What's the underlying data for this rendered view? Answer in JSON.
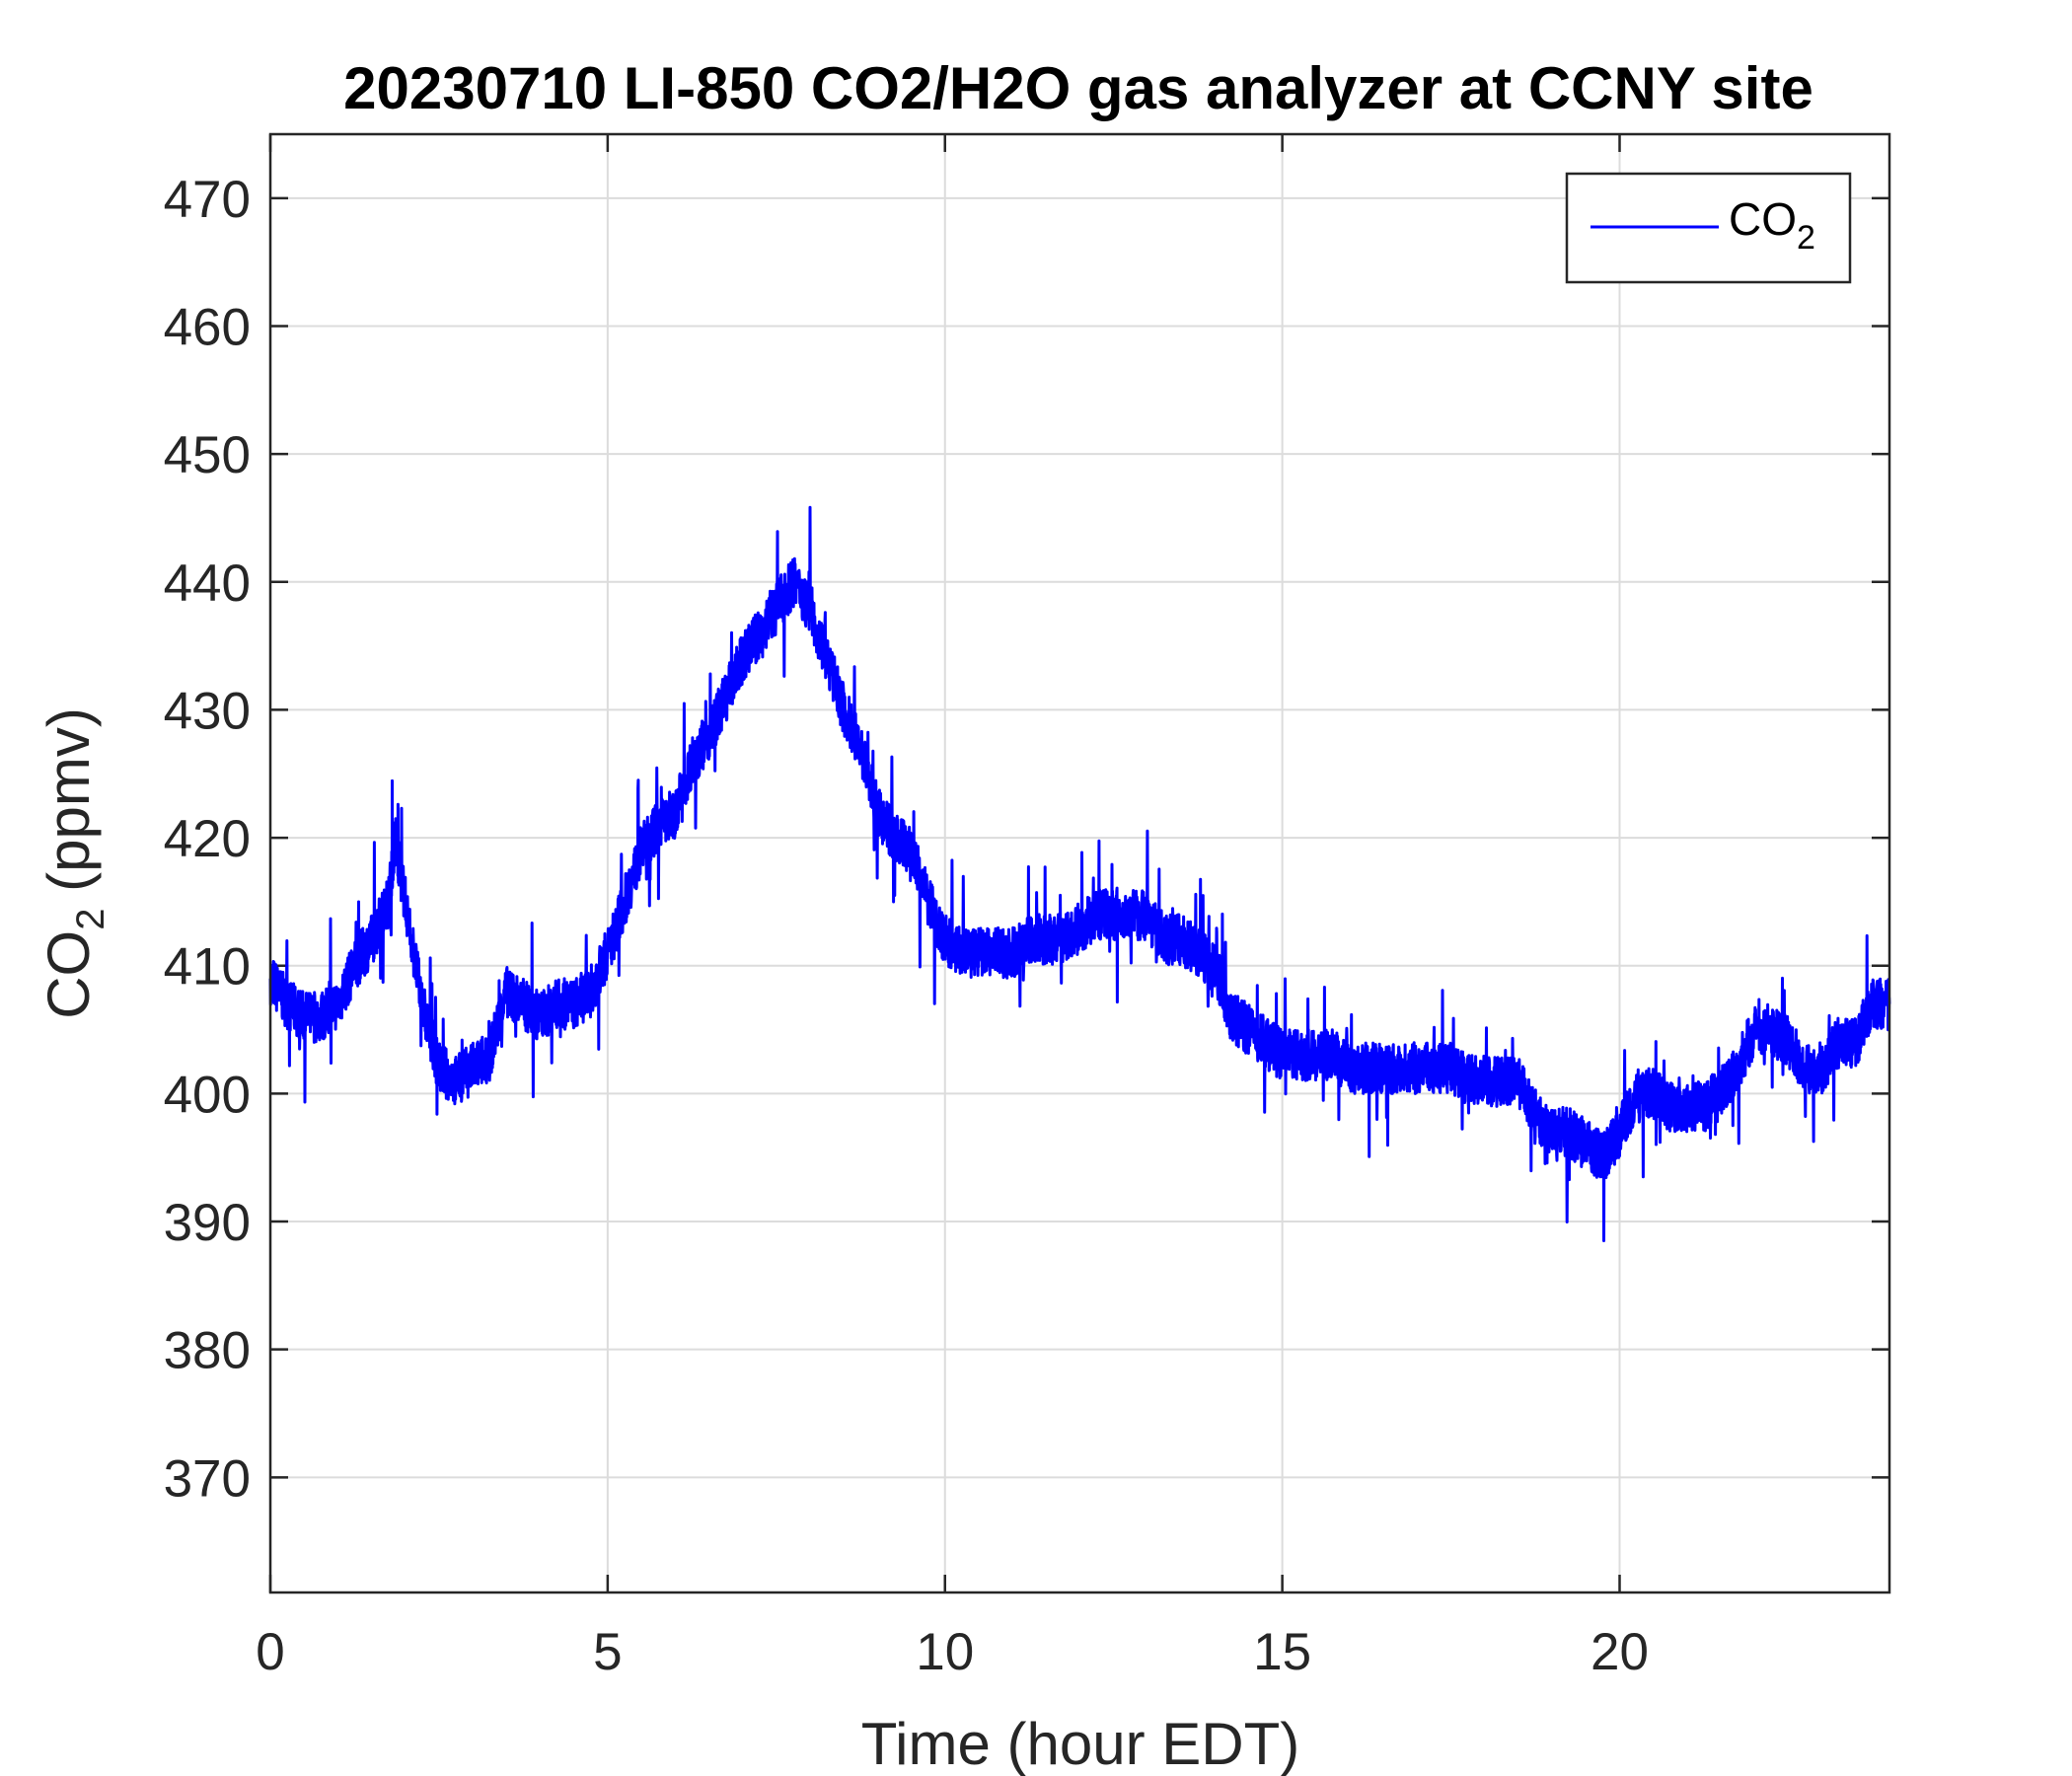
{
  "chart_data": {
    "type": "line",
    "title": "20230710 LI-850 CO2/H2O gas analyzer at CCNY site",
    "xlabel": "Time (hour EDT)",
    "ylabel": {
      "base": "CO",
      "subscript": "2",
      "rest": " (ppmv)"
    },
    "xlim": [
      0,
      24
    ],
    "ylim": [
      361,
      475
    ],
    "xticks": [
      0,
      5,
      10,
      15,
      20
    ],
    "yticks": [
      370,
      380,
      390,
      400,
      410,
      420,
      430,
      440,
      450,
      460,
      470
    ],
    "grid": true,
    "legend_position": "top-right",
    "series": [
      {
        "name": {
          "base": "CO",
          "subscript": "2"
        },
        "color": "#0000ff",
        "x": [
          0,
          0.25,
          0.5,
          0.75,
          1.0,
          1.25,
          1.5,
          1.75,
          1.85,
          2.0,
          2.25,
          2.5,
          2.75,
          3.0,
          3.25,
          3.5,
          3.75,
          4.0,
          4.25,
          4.5,
          4.75,
          5.0,
          5.25,
          5.5,
          5.75,
          6.0,
          6.25,
          6.5,
          6.75,
          7.0,
          7.25,
          7.5,
          7.75,
          8.0,
          8.25,
          8.5,
          8.75,
          9.0,
          9.25,
          9.5,
          9.75,
          10.0,
          10.25,
          10.5,
          10.75,
          11.0,
          11.25,
          11.5,
          11.75,
          12.0,
          12.25,
          12.5,
          12.75,
          13.0,
          13.25,
          13.5,
          13.75,
          14.0,
          14.25,
          14.5,
          14.75,
          15.0,
          15.25,
          15.5,
          15.75,
          16.0,
          16.25,
          16.5,
          16.75,
          17.0,
          17.25,
          17.5,
          17.75,
          18.0,
          18.25,
          18.5,
          18.75,
          19.0,
          19.25,
          19.5,
          19.75,
          20.0,
          20.25,
          20.5,
          20.75,
          21.0,
          21.25,
          21.5,
          21.75,
          22.0,
          22.25,
          22.5,
          22.75,
          23.0,
          23.25,
          23.5,
          23.75,
          24.0
        ],
        "y": [
          409,
          407,
          406,
          406,
          407,
          410,
          412,
          415,
          420,
          415,
          407,
          402,
          401,
          402,
          403,
          408,
          407,
          406,
          407,
          407,
          408,
          411,
          415,
          419,
          421,
          422,
          426,
          428,
          431,
          434,
          436,
          438,
          440,
          438,
          434,
          430,
          427,
          422,
          420,
          419,
          415,
          412,
          411,
          411,
          411,
          411,
          412,
          412,
          412,
          413,
          414,
          414,
          414,
          414,
          412,
          412,
          411,
          410,
          406,
          405,
          404,
          403,
          403,
          403,
          403,
          402,
          402,
          402,
          402,
          402,
          402,
          402,
          401,
          401,
          401,
          401,
          398,
          397,
          397,
          396,
          395,
          397,
          400,
          400,
          399,
          399,
          399,
          400,
          402,
          405,
          405,
          404,
          402,
          402,
          404,
          404,
          407,
          407
        ]
      }
    ]
  }
}
